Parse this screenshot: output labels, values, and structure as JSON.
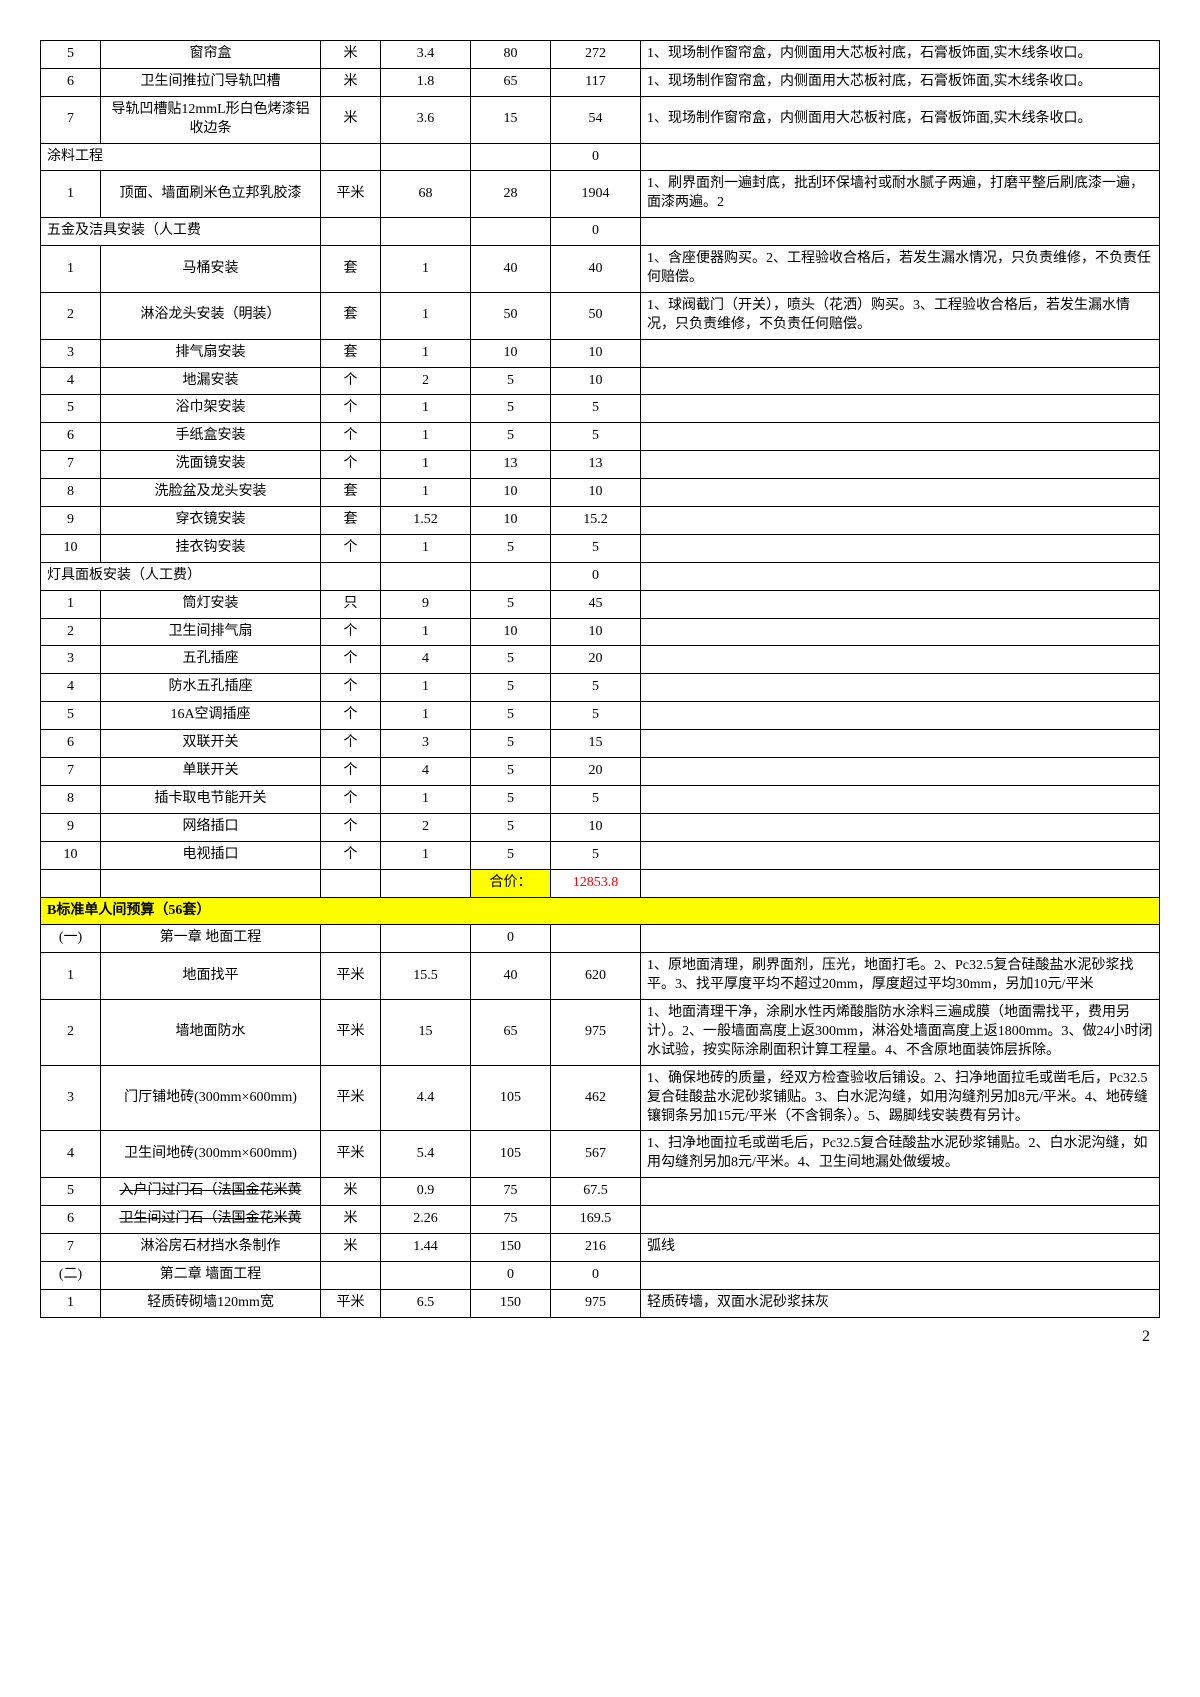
{
  "rows": [
    {
      "idx": "5",
      "name": "窗帘盒",
      "unit": "米",
      "qty": "3.4",
      "price": "80",
      "total": "272",
      "remark": "1、现场制作窗帘盒，内侧面用大芯板衬底，石膏板饰面,实木线条收口。"
    },
    {
      "idx": "6",
      "name": "卫生间推拉门导轨凹槽",
      "unit": "米",
      "qty": "1.8",
      "price": "65",
      "total": "117",
      "remark": "1、现场制作窗帘盒，内侧面用大芯板衬底，石膏板饰面,实木线条收口。"
    },
    {
      "idx": "7",
      "name": "导轨凹槽贴12mmL形白色烤漆铝收边条",
      "unit": "米",
      "qty": "3.6",
      "price": "15",
      "total": "54",
      "remark": "1、现场制作窗帘盒，内侧面用大芯板衬底，石膏板饰面,实木线条收口。"
    },
    {
      "section": "涂料工程",
      "total": "0"
    },
    {
      "idx": "1",
      "name": "顶面、墙面刷米色立邦乳胶漆",
      "unit": "平米",
      "qty": "68",
      "price": "28",
      "total": "1904",
      "remark": "1、刷界面剂一遍封底，批刮环保墙衬或耐水腻子两遍，打磨平整后刷底漆一遍，面漆两遍。2"
    },
    {
      "section": "五金及洁具安装（人工费",
      "total": "0"
    },
    {
      "idx": "1",
      "name": "马桶安装",
      "unit": "套",
      "qty": "1",
      "price": "40",
      "total": "40",
      "remark": "1、含座便器购买。2、工程验收合格后，若发生漏水情况，只负责维修，不负责任何赔偿。"
    },
    {
      "idx": "2",
      "name": "淋浴龙头安装（明装）",
      "unit": "套",
      "qty": "1",
      "price": "50",
      "total": "50",
      "remark": "1、球阀截门（开关），喷头（花洒）购买。3、工程验收合格后，若发生漏水情况，只负责维修，不负责任何赔偿。"
    },
    {
      "idx": "3",
      "name": "排气扇安装",
      "unit": "套",
      "qty": "1",
      "price": "10",
      "total": "10",
      "remark": ""
    },
    {
      "idx": "4",
      "name": "地漏安装",
      "unit": "个",
      "qty": "2",
      "price": "5",
      "total": "10",
      "remark": ""
    },
    {
      "idx": "5",
      "name": "浴巾架安装",
      "unit": "个",
      "qty": "1",
      "price": "5",
      "total": "5",
      "remark": ""
    },
    {
      "idx": "6",
      "name": "手纸盒安装",
      "unit": "个",
      "qty": "1",
      "price": "5",
      "total": "5",
      "remark": ""
    },
    {
      "idx": "7",
      "name": "洗面镜安装",
      "unit": "个",
      "qty": "1",
      "price": "13",
      "total": "13",
      "remark": ""
    },
    {
      "idx": "8",
      "name": "洗脸盆及龙头安装",
      "unit": "套",
      "qty": "1",
      "price": "10",
      "total": "10",
      "remark": ""
    },
    {
      "idx": "9",
      "name": "穿衣镜安装",
      "unit": "套",
      "qty": "1.52",
      "price": "10",
      "total": "15.2",
      "remark": ""
    },
    {
      "idx": "10",
      "name": "挂衣钩安装",
      "unit": "个",
      "qty": "1",
      "price": "5",
      "total": "5",
      "remark": ""
    },
    {
      "section": "灯具面板安装（人工费）",
      "total": "0"
    },
    {
      "idx": "1",
      "name": "筒灯安装",
      "unit": "只",
      "qty": "9",
      "price": "5",
      "total": "45",
      "remark": ""
    },
    {
      "idx": "2",
      "name": "卫生间排气扇",
      "unit": "个",
      "qty": "1",
      "price": "10",
      "total": "10",
      "remark": ""
    },
    {
      "idx": "3",
      "name": "五孔插座",
      "unit": "个",
      "qty": "4",
      "price": "5",
      "total": "20",
      "remark": ""
    },
    {
      "idx": "4",
      "name": "防水五孔插座",
      "unit": "个",
      "qty": "1",
      "price": "5",
      "total": "5",
      "remark": ""
    },
    {
      "idx": "5",
      "name": "16A空调插座",
      "unit": "个",
      "qty": "1",
      "price": "5",
      "total": "5",
      "remark": ""
    },
    {
      "idx": "6",
      "name": "双联开关",
      "unit": "个",
      "qty": "3",
      "price": "5",
      "total": "15",
      "remark": ""
    },
    {
      "idx": "7",
      "name": "单联开关",
      "unit": "个",
      "qty": "4",
      "price": "5",
      "total": "20",
      "remark": ""
    },
    {
      "idx": "8",
      "name": "插卡取电节能开关",
      "unit": "个",
      "qty": "1",
      "price": "5",
      "total": "5",
      "remark": ""
    },
    {
      "idx": "9",
      "name": "网络插口",
      "unit": "个",
      "qty": "2",
      "price": "5",
      "total": "10",
      "remark": ""
    },
    {
      "idx": "10",
      "name": "电视插口",
      "unit": "个",
      "qty": "1",
      "price": "5",
      "total": "5",
      "remark": ""
    },
    {
      "sumrow": true,
      "label": "合价：",
      "value": "12853.8"
    },
    {
      "yellowSection": "B标准单人间预算（56套）"
    },
    {
      "idx": "(一)",
      "name": "第一章 地面工程",
      "unit": "",
      "qty": "",
      "price": "0",
      "total": "",
      "remark": ""
    },
    {
      "idx": "1",
      "name": "地面找平",
      "unit": "平米",
      "qty": "15.5",
      "price": "40",
      "total": "620",
      "remark": "1、原地面清理，刷界面剂，压光，地面打毛。2、Pc32.5复合硅酸盐水泥砂浆找平。3、找平厚度平均不超过20mm，厚度超过平均30mm，另加10元/平米"
    },
    {
      "idx": "2",
      "name": "墙地面防水",
      "unit": "平米",
      "qty": "15",
      "price": "65",
      "total": "975",
      "remark": "1、地面清理干净，涂刷水性丙烯酸脂防水涂料三遍成膜（地面需找平，费用另计）。2、一般墙面高度上返300mm，淋浴处墙面高度上返1800mm。3、做24小时闭水试验，按实际涂刷面积计算工程量。4、不含原地面装饰层拆除。"
    },
    {
      "idx": "3",
      "name": "门厅铺地砖(300mm×600mm)",
      "unit": "平米",
      "qty": "4.4",
      "price": "105",
      "total": "462",
      "remark": "1、确保地砖的质量，经双方检查验收后铺设。2、扫净地面拉毛或凿毛后，Pc32.5复合硅酸盐水泥砂浆铺贴。3、白水泥沟缝，如用沟缝剂另加8元/平米。4、地砖缝镶铜条另加15元/平米（不含铜条）。5、踢脚线安装费有另计。"
    },
    {
      "idx": "4",
      "name": "卫生间地砖(300mm×600mm)",
      "unit": "平米",
      "qty": "5.4",
      "price": "105",
      "total": "567",
      "remark": "1、扫净地面拉毛或凿毛后，Pc32.5复合硅酸盐水泥砂浆铺贴。2、白水泥沟缝，如用勾缝剂另加8元/平米。4、卫生间地漏处做缓坡。"
    },
    {
      "idx": "5",
      "name": "入户门过门石（法国金花米黄",
      "unit": "米",
      "qty": "0.9",
      "price": "75",
      "total": "67.5",
      "remark": "",
      "strike": true
    },
    {
      "idx": "6",
      "name": "卫生间过门石（法国金花米黄",
      "unit": "米",
      "qty": "2.26",
      "price": "75",
      "total": "169.5",
      "remark": "",
      "strike": true
    },
    {
      "idx": "7",
      "name": "淋浴房石材挡水条制作",
      "unit": "米",
      "qty": "1.44",
      "price": "150",
      "total": "216",
      "remark": "弧线"
    },
    {
      "idx": "(二)",
      "name": "第二章 墙面工程",
      "unit": "",
      "qty": "",
      "price": "0",
      "total": "0",
      "remark": ""
    },
    {
      "idx": "1",
      "name": "轻质砖砌墙120mm宽",
      "unit": "平米",
      "qty": "6.5",
      "price": "150",
      "total": "975",
      "remark": "轻质砖墙，双面水泥砂浆抹灰"
    }
  ],
  "pageNumber": "2"
}
